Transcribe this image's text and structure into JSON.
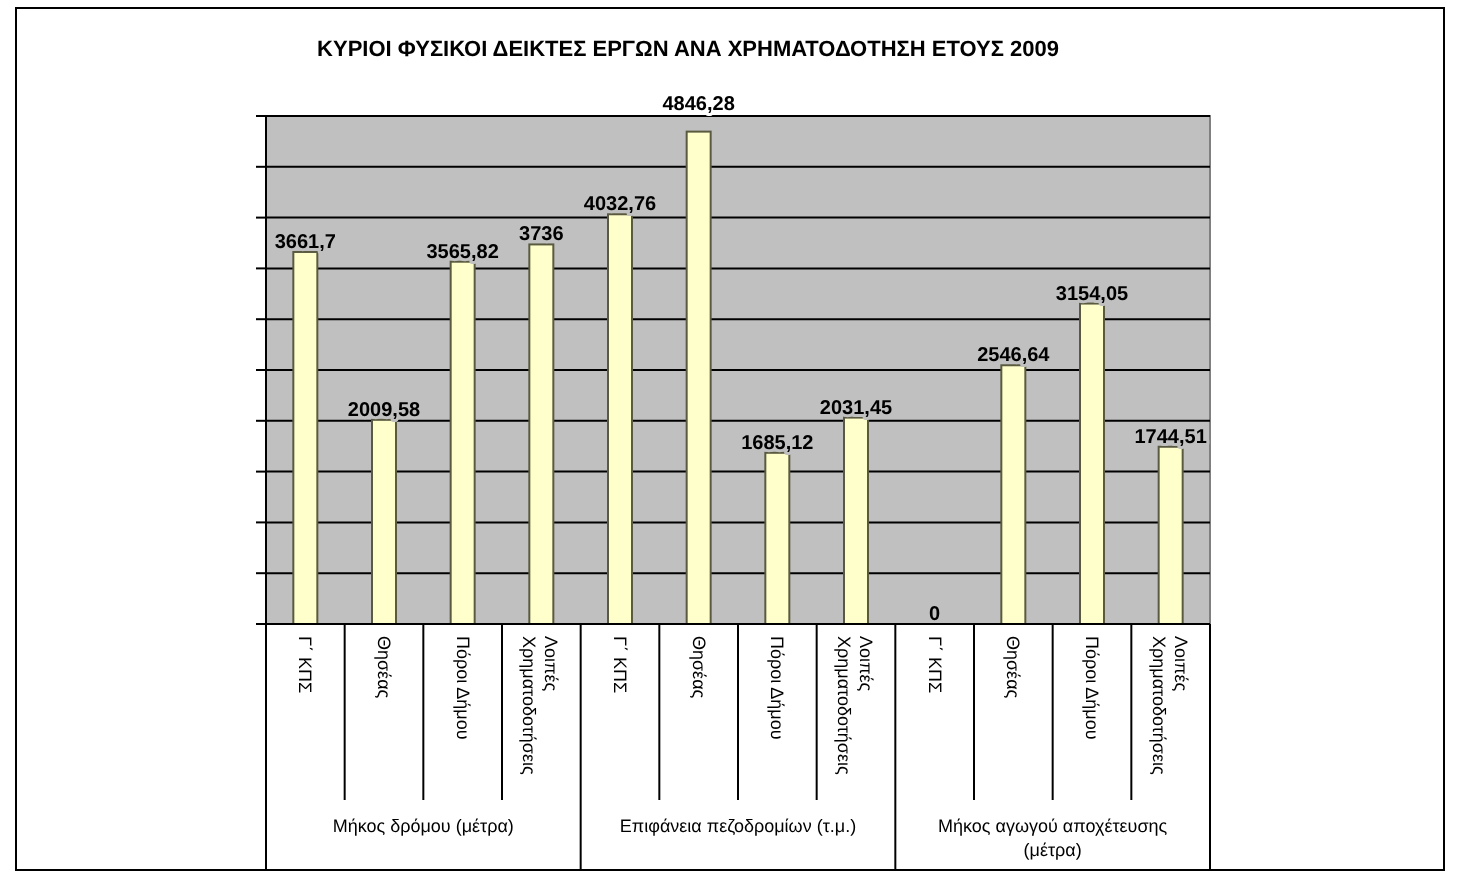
{
  "chart_data": {
    "type": "bar",
    "title": "ΚΥΡΙΟΙ ΦΥΣΙΚΟΙ ΔΕΙΚΤΕΣ ΕΡΓΩΝ ΑΝΑ ΧΡΗΜΑΤΟΔΟΤΗΣΗ ΕΤΟΥΣ 2009",
    "categories": [
      "Γ΄ ΚΠΣ",
      "Θησέας",
      "Πόροι Δήμου",
      "Λοιπές Χρηματοδοτήσεις",
      "Γ΄ ΚΠΣ",
      "Θησέας",
      "Πόροι Δήμου",
      "Λοιπές Χρηματοδοτήσεις",
      "Γ΄ ΚΠΣ",
      "Θησέας",
      "Πόροι Δήμου",
      "Λοιπές Χρηματοδοτήσεις"
    ],
    "values": [
      3661.7,
      2009.58,
      3565.82,
      3736,
      4032.76,
      4846.28,
      1685.12,
      2031.45,
      0,
      2546.64,
      3154.05,
      1744.51
    ],
    "value_labels": [
      "3661,7",
      "2009,58",
      "3565,82",
      "3736",
      "4032,76",
      "4846,28",
      "1685,12",
      "2031,45",
      "0",
      "2546,64",
      "3154,05",
      "1744,51"
    ],
    "color": "#ffffcc",
    "annotations": [
      "Μήκος δρόμου (μέτρα)",
      "Επιφάνεια πεζοδρομίων (τ.μ.)",
      "Μήκος αγωγού αποχέτευσης (μέτρα)"
    ],
    "ylim": [
      0,
      5000
    ],
    "yticks": [
      {
        "value": 0,
        "label": null
      },
      {
        "value": 500,
        "label": null
      },
      {
        "value": 1000,
        "label": null
      },
      {
        "value": 1500,
        "label": null
      },
      {
        "value": 2000,
        "label": null
      },
      {
        "value": 2500,
        "label": null
      },
      {
        "value": 3000,
        "label": null
      },
      {
        "value": 3500,
        "label": null
      },
      {
        "value": 4000,
        "label": null
      },
      {
        "value": 4500,
        "label": null
      },
      {
        "value": 5000,
        "label": null
      }
    ],
    "tick_labels": "x",
    "grid": true
  }
}
